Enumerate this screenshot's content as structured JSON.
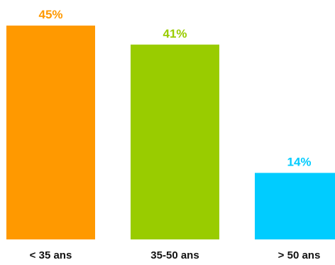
{
  "chart_data": {
    "type": "bar",
    "categories": [
      "< 35 ans",
      "35-50 ans",
      "> 50 ans"
    ],
    "values": [
      45,
      41,
      14
    ],
    "value_labels": [
      "45%",
      "41%",
      "14%"
    ],
    "colors": [
      "#FF9900",
      "#99CC00",
      "#00CCFF"
    ],
    "title": "",
    "xlabel": "",
    "ylabel": "",
    "ylim": [
      0,
      45
    ],
    "grid": false,
    "legend": "none"
  }
}
